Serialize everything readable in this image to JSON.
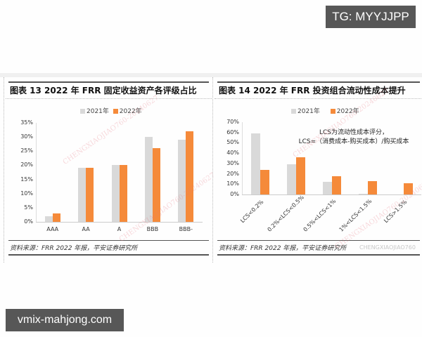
{
  "overlays": {
    "top_right_badge": "TG: MYYJJPP",
    "bottom_left_badge": "vmix-mahjong.com"
  },
  "colors": {
    "series_2021": "#d9d9d9",
    "series_2022": "#f58a3a",
    "badge_bg": "#575757"
  },
  "chart_data": [
    {
      "type": "bar",
      "title": "图表 13   2022 年 FRR 固定收益资产各评级占比",
      "categories": [
        "AAA",
        "AA",
        "A",
        "BBB",
        "BBB-"
      ],
      "series": [
        {
          "name": "2021年",
          "values": [
            2,
            19,
            20,
            30,
            29
          ]
        },
        {
          "name": "2022年",
          "values": [
            3,
            19,
            20,
            26,
            32
          ]
        }
      ],
      "yticks": [
        "0%",
        "5%",
        "10%",
        "15%",
        "20%",
        "25%",
        "30%",
        "35%"
      ],
      "ylim": [
        0,
        35
      ],
      "ylabel": "",
      "xlabel": "",
      "legend_position": "top",
      "grid": false,
      "source": "资料来源：FRR 2022 年报，平安证券研究所"
    },
    {
      "type": "bar",
      "title": "图表 14   2022 年 FRR 投资组合流动性成本提升",
      "categories": [
        "LCS<0.2%",
        "0.2%<LCS<0.5%",
        "0.5%<LCS<1%",
        "1%<LCS<1.5%",
        "LCS>1.5%"
      ],
      "series": [
        {
          "name": "2021年",
          "values": [
            59,
            29,
            12,
            0.5,
            0
          ]
        },
        {
          "name": "2022年",
          "values": [
            24,
            36,
            18,
            13,
            11
          ]
        }
      ],
      "yticks": [
        "0%",
        "10%",
        "20%",
        "30%",
        "40%",
        "50%",
        "60%",
        "70%"
      ],
      "ylim": [
        0,
        70
      ],
      "annotation": [
        "LCS为流动性成本评分，",
        "LCS=（消费成本-购买成本）/购买成本"
      ],
      "legend_position": "top",
      "grid": false,
      "source": "资料来源：FRR 2022 年报，平安证券研究所"
    }
  ],
  "watermarks": {
    "diagonal": "CHENGXIAOJIAO760-20240627",
    "corner": "CHENGXIAOJIAO760"
  }
}
